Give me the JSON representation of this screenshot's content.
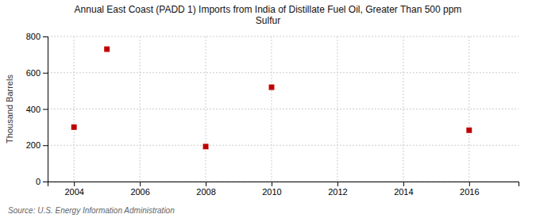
{
  "chart_data": {
    "type": "scatter",
    "title": "Annual East Coast (PADD 1) Imports from India of Distillate Fuel Oil, Greater Than 500 ppm\nSulfur",
    "ylabel": "Thousand Barrels",
    "source": "Source: U.S. Energy Information Administration",
    "x": [
      2004,
      2005,
      2008,
      2010,
      2016
    ],
    "values": [
      300,
      730,
      193,
      520,
      283
    ],
    "color": "#c00000",
    "marker": "square",
    "xlim": [
      2003.2,
      2017.5
    ],
    "ylim": [
      0,
      800
    ],
    "xticks": [
      2004,
      2006,
      2008,
      2010,
      2012,
      2014,
      2016
    ],
    "yticks": [
      0,
      200,
      400,
      600,
      800
    ],
    "grid": true
  }
}
